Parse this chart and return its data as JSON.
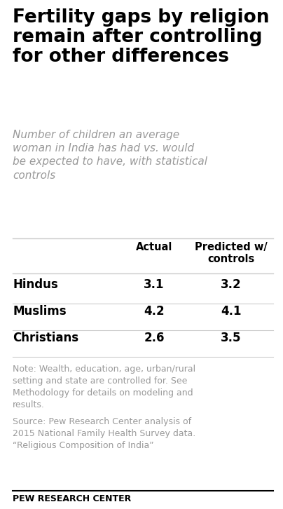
{
  "title": "Fertility gaps by religion\nremain after controlling\nfor other differences",
  "subtitle": "Number of children an average\nwoman in India has had vs. would\nbe expected to have, with statistical\ncontrols",
  "col_headers": [
    "Actual",
    "Predicted w/\ncontrols"
  ],
  "rows": [
    {
      "label": "Hindus",
      "actual": "3.1",
      "predicted": "3.2"
    },
    {
      "label": "Muslims",
      "actual": "4.2",
      "predicted": "4.1"
    },
    {
      "label": "Christians",
      "actual": "2.6",
      "predicted": "3.5"
    }
  ],
  "note1": "Note: Wealth, education, age, urban/rural\nsetting and state are controlled for. See\nMethodology for details on modeling and\nresults.",
  "note2": "Source: Pew Research Center analysis of\n2015 National Family Health Survey data.\n“Religious Composition of India”",
  "footer": "PEW RESEARCH CENTER",
  "bg_color": "#ffffff",
  "title_color": "#000000",
  "subtitle_color": "#999999",
  "header_color": "#000000",
  "row_label_color": "#000000",
  "value_color": "#000000",
  "note_color": "#999999",
  "footer_color": "#000000",
  "divider_color": "#cccccc",
  "footer_line_color": "#000000"
}
